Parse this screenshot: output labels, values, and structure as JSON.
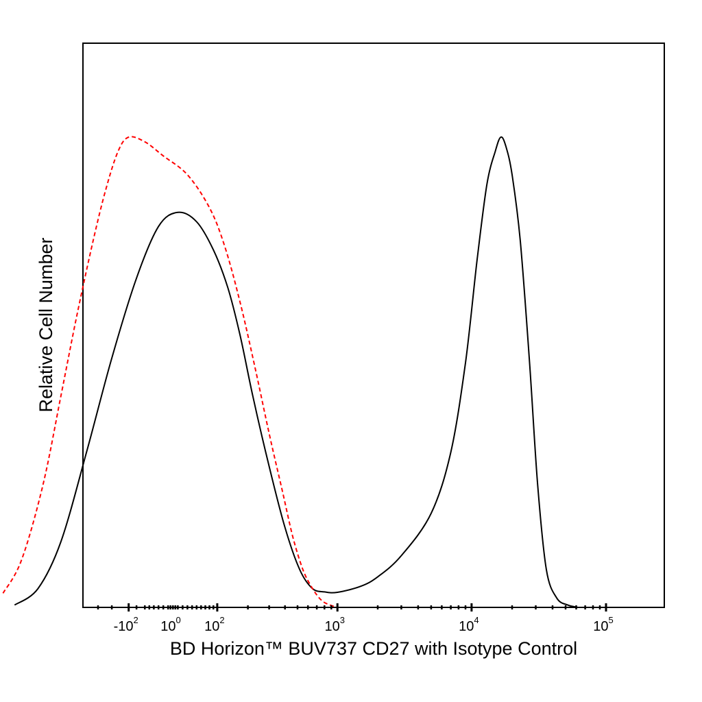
{
  "chart_data": {
    "type": "line",
    "title": "",
    "xlabel": "BD Horizon™ BUV737 CD27 with Isotype Control",
    "ylabel": "Relative Cell Number",
    "x_scale": "biexponential (logicle)",
    "y_ticks_shown": false,
    "grid": false,
    "legend": "none",
    "x_tick_labels": [
      {
        "base": "-10",
        "exp": "2",
        "value": -100
      },
      {
        "base": "10",
        "exp": "0",
        "value": 1
      },
      {
        "base": "10",
        "exp": "2",
        "value": 100
      },
      {
        "base": "10",
        "exp": "3",
        "value": 1000
      },
      {
        "base": "10",
        "exp": "4",
        "value": 10000
      },
      {
        "base": "10",
        "exp": "5",
        "value": 100000
      }
    ],
    "x_minor_ticks": [
      -500,
      -400,
      -300,
      -200,
      -150,
      -100,
      -80,
      -60,
      -50,
      -40,
      -30,
      -20,
      -10,
      -5,
      0,
      5,
      10,
      20,
      30,
      40,
      50,
      60,
      70,
      80,
      90,
      100,
      200,
      300,
      400,
      500,
      600,
      700,
      800,
      900,
      1000,
      2000,
      3000,
      4000,
      5000,
      6000,
      7000,
      8000,
      9000,
      10000,
      20000,
      30000,
      40000,
      50000,
      60000,
      70000,
      80000,
      90000,
      100000
    ],
    "series": [
      {
        "name": "",
        "color": "#000000",
        "dash": "solid",
        "points": [
          [
            -900,
            0.5
          ],
          [
            -600,
            4
          ],
          [
            -400,
            14
          ],
          [
            -250,
            33
          ],
          [
            -150,
            53
          ],
          [
            -80,
            70
          ],
          [
            -30,
            81
          ],
          [
            10,
            84
          ],
          [
            50,
            82
          ],
          [
            90,
            76
          ],
          [
            130,
            68
          ],
          [
            170,
            58
          ],
          [
            220,
            45
          ],
          [
            300,
            30
          ],
          [
            400,
            17
          ],
          [
            520,
            8
          ],
          [
            650,
            4
          ],
          [
            800,
            3.3
          ],
          [
            1000,
            3.2
          ],
          [
            1500,
            4.5
          ],
          [
            2000,
            6.5
          ],
          [
            3000,
            11
          ],
          [
            5000,
            20
          ],
          [
            7000,
            33
          ],
          [
            9000,
            52
          ],
          [
            11000,
            74
          ],
          [
            13000,
            90
          ],
          [
            15000,
            97
          ],
          [
            16500,
            100
          ],
          [
            18000,
            98
          ],
          [
            20000,
            92
          ],
          [
            23000,
            78
          ],
          [
            27000,
            52
          ],
          [
            31000,
            26
          ],
          [
            36000,
            8
          ],
          [
            43000,
            2
          ],
          [
            52000,
            0.5
          ],
          [
            62000,
            0
          ]
        ]
      },
      {
        "name": "",
        "color": "#ff0000",
        "dash": "dashed",
        "points": [
          [
            -1100,
            3
          ],
          [
            -800,
            10
          ],
          [
            -550,
            26
          ],
          [
            -400,
            45
          ],
          [
            -300,
            62
          ],
          [
            -220,
            78
          ],
          [
            -170,
            89
          ],
          [
            -130,
            97
          ],
          [
            -100,
            100
          ],
          [
            -60,
            99
          ],
          [
            -20,
            96
          ],
          [
            30,
            92
          ],
          [
            80,
            85
          ],
          [
            120,
            77
          ],
          [
            170,
            65
          ],
          [
            230,
            51
          ],
          [
            300,
            37
          ],
          [
            380,
            25
          ],
          [
            460,
            15
          ],
          [
            550,
            8
          ],
          [
            650,
            4
          ],
          [
            760,
            1.5
          ],
          [
            880,
            0.5
          ],
          [
            1000,
            0
          ]
        ]
      }
    ]
  }
}
